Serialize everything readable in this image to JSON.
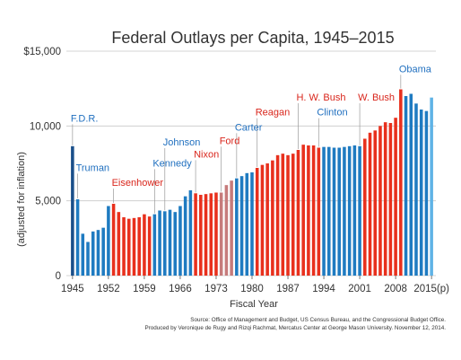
{
  "chart_data": {
    "type": "bar",
    "title": "Federal Outlays per Capita, 1945–2015",
    "xlabel": "Fiscal Year",
    "ylabel": "(adjusted for inflation)",
    "ylim": [
      0,
      15000
    ],
    "y_ticks": [
      0,
      5000,
      10000,
      15000
    ],
    "y_tick_labels": [
      "0",
      "5,000",
      "10,000",
      "$15,000"
    ],
    "x_tick_labels": [
      {
        "year": 1945,
        "label": "1945"
      },
      {
        "year": 1952,
        "label": "1952"
      },
      {
        "year": 1959,
        "label": "1959"
      },
      {
        "year": 1966,
        "label": "1966"
      },
      {
        "year": 1973,
        "label": "1973"
      },
      {
        "year": 1980,
        "label": "1980"
      },
      {
        "year": 1987,
        "label": "1987"
      },
      {
        "year": 1994,
        "label": "1994"
      },
      {
        "year": 2001,
        "label": "2001"
      },
      {
        "year": 2008,
        "label": "2008"
      },
      {
        "year": 2015,
        "label": "2015(p)"
      }
    ],
    "grid": true,
    "colors": {
      "democrat": "#1f7bc1",
      "democrat_dark": "#1a4f8a",
      "republican": "#e8301d",
      "republican_light": "#c67b7b",
      "projected": "#5fb3e6",
      "annotation_blue": "#1f6fbf",
      "annotation_red": "#d9261c"
    },
    "years": [
      1945,
      1946,
      1947,
      1948,
      1949,
      1950,
      1951,
      1952,
      1953,
      1954,
      1955,
      1956,
      1957,
      1958,
      1959,
      1960,
      1961,
      1962,
      1963,
      1964,
      1965,
      1966,
      1967,
      1968,
      1969,
      1970,
      1971,
      1972,
      1973,
      1974,
      1975,
      1976,
      1977,
      1978,
      1979,
      1980,
      1981,
      1982,
      1983,
      1984,
      1985,
      1986,
      1987,
      1988,
      1989,
      1990,
      1991,
      1992,
      1993,
      1994,
      1995,
      1996,
      1997,
      1998,
      1999,
      2000,
      2001,
      2002,
      2003,
      2004,
      2005,
      2006,
      2007,
      2008,
      2009,
      2010,
      2011,
      2012,
      2013,
      2014,
      2015
    ],
    "values": [
      8650,
      5100,
      2800,
      2250,
      2950,
      3050,
      3200,
      4650,
      4800,
      4250,
      3900,
      3800,
      3850,
      3900,
      4100,
      3950,
      4100,
      4350,
      4300,
      4400,
      4250,
      4650,
      5300,
      5700,
      5500,
      5400,
      5450,
      5500,
      5550,
      5550,
      6050,
      6350,
      6500,
      6650,
      6850,
      6900,
      7200,
      7400,
      7500,
      7700,
      8050,
      8150,
      8050,
      8150,
      8400,
      8750,
      8700,
      8700,
      8550,
      8600,
      8600,
      8550,
      8550,
      8600,
      8650,
      8700,
      8650,
      9150,
      9550,
      9700,
      10000,
      10250,
      10200,
      10550,
      12450,
      12000,
      12150,
      11500,
      11100,
      11000,
      11900
    ],
    "parties": [
      "D",
      "D",
      "D",
      "D",
      "D",
      "D",
      "D",
      "D",
      "R",
      "R",
      "R",
      "R",
      "R",
      "R",
      "R",
      "R",
      "D",
      "D",
      "D",
      "D",
      "D",
      "D",
      "D",
      "D",
      "R",
      "R",
      "R",
      "R",
      "R",
      "R",
      "R",
      "R",
      "D",
      "D",
      "D",
      "D",
      "R",
      "R",
      "R",
      "R",
      "R",
      "R",
      "R",
      "R",
      "R",
      "R",
      "R",
      "R",
      "R",
      "D",
      "D",
      "D",
      "D",
      "D",
      "D",
      "D",
      "D",
      "R",
      "R",
      "R",
      "R",
      "R",
      "R",
      "R",
      "R",
      "D",
      "D",
      "D",
      "D",
      "D",
      "P"
    ],
    "annotations": [
      {
        "label": "F.D.R.",
        "year": 1945,
        "value": 10300,
        "party": "D"
      },
      {
        "label": "Truman",
        "year": 1946,
        "value": 7000,
        "party": "D"
      },
      {
        "label": "Eisenhower",
        "year": 1953,
        "value": 6000,
        "party": "R"
      },
      {
        "label": "Kennedy",
        "year": 1961,
        "value": 7300,
        "party": "D"
      },
      {
        "label": "Johnson",
        "year": 1963,
        "value": 8700,
        "party": "D"
      },
      {
        "label": "Nixon",
        "year": 1969,
        "value": 7900,
        "party": "R"
      },
      {
        "label": "Ford",
        "year": 1974,
        "value": 8800,
        "party": "R"
      },
      {
        "label": "Carter",
        "year": 1977,
        "value": 9700,
        "party": "D"
      },
      {
        "label": "Reagan",
        "year": 1981,
        "value": 10700,
        "party": "R"
      },
      {
        "label": "H. W. Bush",
        "year": 1989,
        "value": 11700,
        "party": "R"
      },
      {
        "label": "Clinton",
        "year": 1993,
        "value": 10700,
        "party": "D"
      },
      {
        "label": "W. Bush",
        "year": 2001,
        "value": 11700,
        "party": "R"
      },
      {
        "label": "Obama",
        "year": 2009,
        "value": 13600,
        "party": "D"
      }
    ],
    "source_line1": "Source: Office of Management and Budget, US Census Bureau, and the Congressional Budget Office.",
    "source_line2": "Produced by Veronique de Rugy and Rizqi Rachmat, Mercatus Center at George Mason University. November 12, 2014."
  }
}
